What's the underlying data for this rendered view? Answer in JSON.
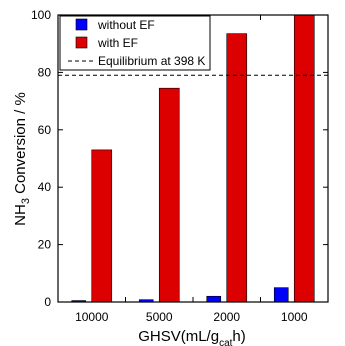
{
  "chart_data": {
    "type": "bar",
    "categories": [
      "10000",
      "5000",
      "2000",
      "1000"
    ],
    "series": [
      {
        "name": "without EF",
        "values": [
          0.5,
          0.8,
          2,
          5
        ],
        "color": "#0000ff"
      },
      {
        "name": "with EF",
        "values": [
          53,
          74.5,
          93.5,
          100
        ],
        "color": "#dd0000"
      }
    ],
    "reference_line": {
      "name": "Equilibrium at 398 K",
      "value": 79,
      "style": "dashed"
    },
    "xlabel_main": "GHSV(mL/g",
    "xlabel_sub": "cat",
    "xlabel_end": "h)",
    "ylabel_main": "NH",
    "ylabel_sub": "3",
    "ylabel_end": " Conversion / %",
    "ylim": [
      0,
      100
    ],
    "yticks": [
      0,
      20,
      40,
      60,
      80,
      100
    ],
    "grid": false,
    "legend_position": "top-left"
  }
}
